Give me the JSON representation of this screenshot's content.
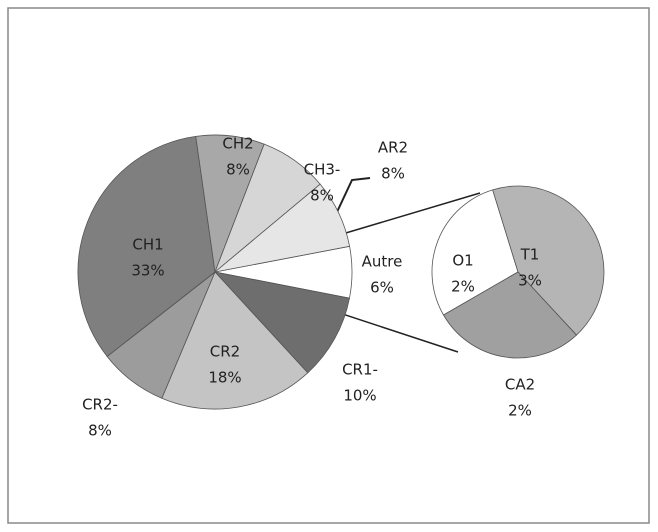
{
  "chart_data": {
    "type": "pie",
    "categories": [
      "Autre",
      "CR1-",
      "CR2",
      "CR2-",
      "CH1",
      "CH2",
      "CH3-",
      "AR2"
    ],
    "values": [
      6,
      10,
      18,
      8,
      33,
      8,
      8,
      8
    ],
    "value_labels": [
      "6%",
      "10%",
      "18%",
      "8%",
      "33%",
      "8%",
      "8%",
      "8%"
    ],
    "colors": [
      "#ffffff",
      "#6e6e6e",
      "#c4c4c4",
      "#9c9c9c",
      "#7f7f7f",
      "#a8a8a8",
      "#d6d6d6",
      "#e6e6e6"
    ],
    "secondary": {
      "categories": [
        "O1",
        "T1",
        "CA2"
      ],
      "values": [
        2,
        3,
        2
      ],
      "value_labels": [
        "2%",
        "3%",
        "2%"
      ],
      "colors": [
        "#ffffff",
        "#b5b5b5",
        "#a0a0a0"
      ]
    }
  }
}
